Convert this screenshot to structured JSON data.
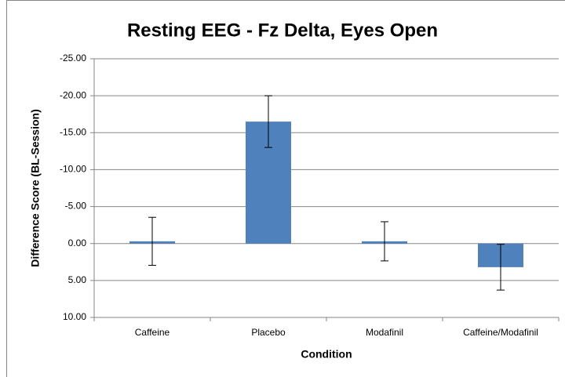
{
  "chart_data": {
    "type": "bar",
    "title": "Resting EEG - Fz Delta, Eyes Open",
    "x_label": "Condition",
    "y_label": "Difference Score (BL-Session)",
    "categories": [
      "Caffeine",
      "Placebo",
      "Modafinil",
      "Caffeine/Modafinil"
    ],
    "values": [
      -0.3,
      -16.5,
      -0.3,
      3.2
    ],
    "errors": [
      3.25,
      3.5,
      2.65,
      3.1
    ],
    "color": "#4f81bd",
    "ylim": [
      -25,
      10
    ],
    "y_inverted": true,
    "yticks": [
      {
        "value": -25,
        "label": "-25.00"
      },
      {
        "value": -20,
        "label": "-20.00"
      },
      {
        "value": -15,
        "label": "-15.00"
      },
      {
        "value": -10,
        "label": "-10.00"
      },
      {
        "value": -5,
        "label": "-5.00"
      },
      {
        "value": 0,
        "label": "0.00"
      },
      {
        "value": 5,
        "label": "5.00"
      },
      {
        "value": 10,
        "label": "10.00"
      }
    ],
    "grid": true
  }
}
